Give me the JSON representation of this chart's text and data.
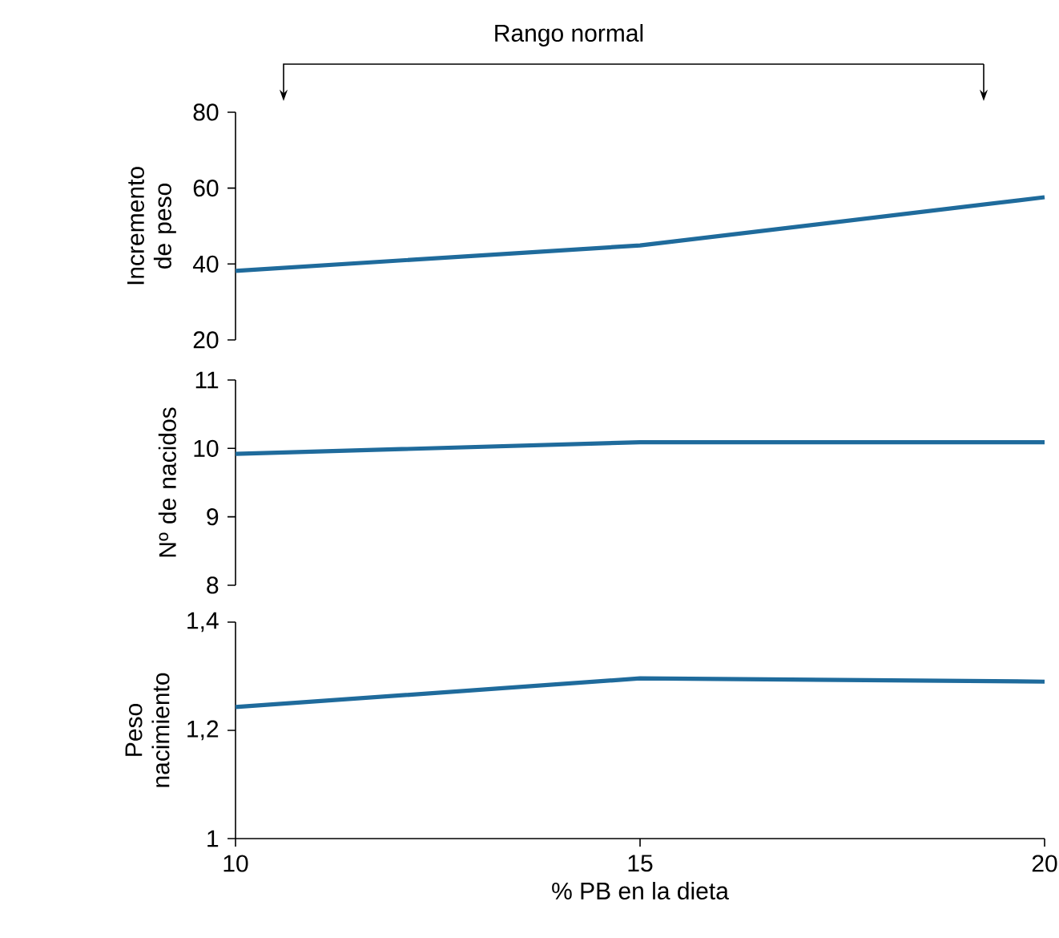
{
  "chart_data": [
    {
      "type": "line",
      "annotations": [
        "Rango normal"
      ],
      "ylabel": "Incremento de peso",
      "x": [
        10,
        15,
        20
      ],
      "xlim": [
        10,
        20
      ],
      "ylim": [
        20,
        80
      ],
      "yticks": [
        20,
        40,
        60,
        80
      ],
      "tick_labels": "y",
      "series": [
        {
          "color": "#1f6b9c",
          "values": [
            38.2,
            44.9,
            57.6
          ]
        }
      ]
    },
    {
      "type": "line",
      "ylabel": "Nº de nacidos",
      "x": [
        10,
        15,
        20
      ],
      "xlim": [
        10,
        20
      ],
      "ylim": [
        8,
        11
      ],
      "yticks": [
        8,
        9,
        10,
        11
      ],
      "tick_labels": "y",
      "series": [
        {
          "color": "#1f6b9c",
          "values": [
            9.92,
            10.09,
            10.09
          ]
        }
      ]
    },
    {
      "type": "line",
      "ylabel": "Peso nacimiento",
      "xlabel": "% PB en la dieta",
      "x": [
        10,
        15,
        20
      ],
      "xlim": [
        10,
        20
      ],
      "xticks": [
        10,
        15,
        20
      ],
      "ylim": [
        1,
        1.4
      ],
      "yticks": [
        1,
        {
          "value": 1.2,
          "label": "1,2"
        },
        {
          "value": 1.4,
          "label": "1,4"
        }
      ],
      "series": [
        {
          "color": "#1f6b9c",
          "values": [
            1.243,
            1.296,
            1.29
          ]
        }
      ]
    }
  ]
}
